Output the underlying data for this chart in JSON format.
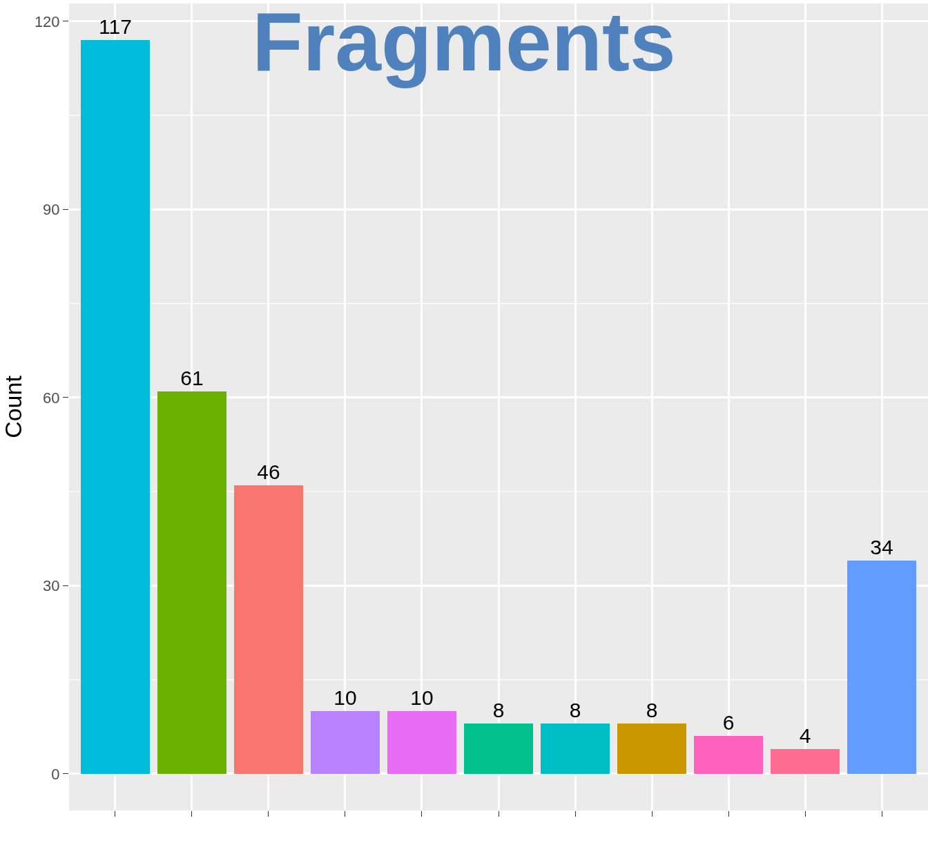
{
  "chart_data": {
    "type": "bar",
    "title": "Fragments",
    "ylabel": "Count",
    "categories": [
      null,
      null,
      null,
      null,
      null,
      null,
      null,
      null,
      null,
      null,
      null
    ],
    "values": [
      117,
      61,
      46,
      10,
      10,
      8,
      8,
      8,
      6,
      4,
      34
    ],
    "colors": [
      "#00bcd8",
      "#6bb100",
      "#f8766d",
      "#b983ff",
      "#e76bf3",
      "#00c08b",
      "#00bfc4",
      "#c99800",
      "#ff62bc",
      "#ff6c91",
      "#619cff"
    ],
    "ylim": [
      -5.85,
      122.85
    ],
    "yticks": [
      0,
      30,
      60,
      90,
      120
    ],
    "grid": true,
    "data_labels": true
  }
}
